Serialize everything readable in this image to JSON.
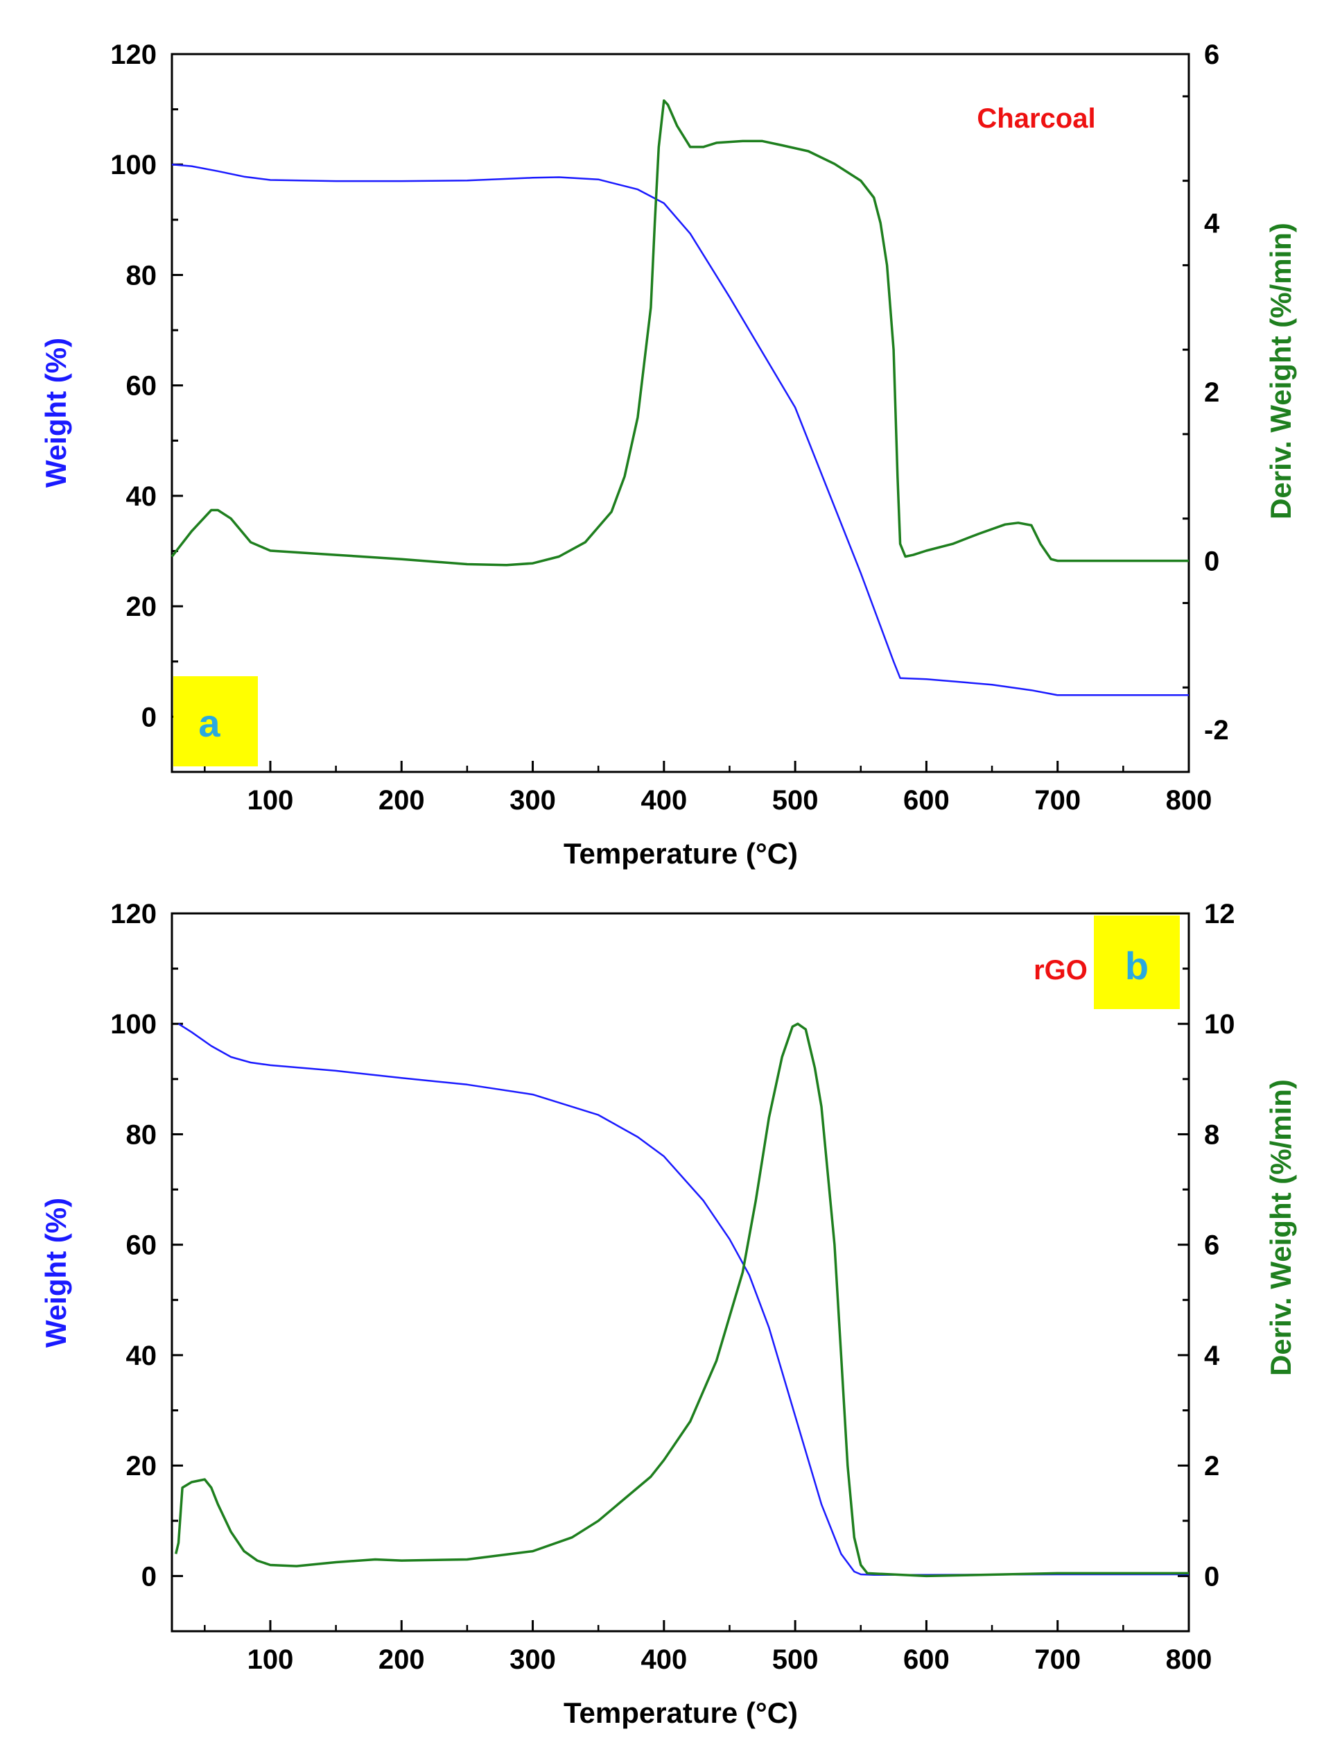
{
  "figure": {
    "panels": [
      {
        "label": "a",
        "sample": "Charcoal"
      },
      {
        "label": "b",
        "sample": "rGO"
      }
    ]
  },
  "colors": {
    "weight": "#1a1aff",
    "deriv": "#1e7f1e",
    "sample_text": "#ee1111",
    "label_text": "#29a9e0",
    "label_bg": "#ffff00",
    "axis": "#000000"
  },
  "chart_data": [
    {
      "type": "line",
      "title": "Charcoal",
      "panel_label": "a",
      "xlabel": "Temperature (°C)",
      "ylabel": "Weight (%)",
      "y2label": "Deriv. Weight (%/min)",
      "xlim": [
        25,
        800
      ],
      "ylim": [
        -10,
        120
      ],
      "y2lim": [
        -2.5,
        6
      ],
      "xticks": [
        100,
        200,
        300,
        400,
        500,
        600,
        700,
        800
      ],
      "yticks": [
        0,
        20,
        40,
        60,
        80,
        100,
        120
      ],
      "y2ticks": [
        -2,
        0,
        2,
        4,
        6
      ],
      "grid": false,
      "series": [
        {
          "name": "Weight (%)",
          "axis": "left",
          "x": [
            25,
            40,
            60,
            80,
            100,
            150,
            200,
            250,
            300,
            320,
            350,
            380,
            400,
            420,
            450,
            500,
            550,
            575,
            580,
            600,
            650,
            680,
            700,
            750,
            800
          ],
          "y": [
            100,
            99.7,
            98.8,
            97.8,
            97.2,
            97,
            97,
            97.1,
            97.6,
            97.7,
            97.3,
            95.5,
            93,
            87.5,
            76,
            56,
            26,
            10,
            7,
            6.8,
            5.8,
            4.8,
            3.9,
            3.9,
            3.9
          ]
        },
        {
          "name": "Deriv. Weight (%/min)",
          "axis": "right",
          "x": [
            25,
            40,
            55,
            60,
            70,
            85,
            100,
            150,
            200,
            250,
            280,
            300,
            320,
            340,
            360,
            370,
            380,
            390,
            393,
            396,
            400,
            403,
            410,
            420,
            430,
            440,
            460,
            475,
            490,
            510,
            530,
            550,
            560,
            565,
            570,
            575,
            578,
            580,
            584,
            590,
            600,
            620,
            640,
            660,
            670,
            680,
            687,
            695,
            700,
            750,
            800
          ],
          "y": [
            0.05,
            0.35,
            0.6,
            0.6,
            0.5,
            0.22,
            0.12,
            0.07,
            0.02,
            -0.04,
            -0.05,
            -0.03,
            0.05,
            0.22,
            0.58,
            1.0,
            1.7,
            3.0,
            4.0,
            4.9,
            5.45,
            5.4,
            5.15,
            4.9,
            4.9,
            4.95,
            4.97,
            4.97,
            4.92,
            4.85,
            4.7,
            4.5,
            4.3,
            4.0,
            3.5,
            2.5,
            1.0,
            0.2,
            0.05,
            0.07,
            0.12,
            0.2,
            0.32,
            0.43,
            0.45,
            0.42,
            0.2,
            0.02,
            0.0,
            0.0,
            0.0
          ]
        }
      ]
    },
    {
      "type": "line",
      "title": "rGO",
      "panel_label": "b",
      "xlabel": "Temperature (°C)",
      "ylabel": "Weight (%)",
      "y2label": "Deriv. Weight (%/min)",
      "xlim": [
        25,
        800
      ],
      "ylim": [
        -10,
        120
      ],
      "y2lim": [
        -1,
        12
      ],
      "xticks": [
        100,
        200,
        300,
        400,
        500,
        600,
        700,
        800
      ],
      "yticks": [
        0,
        20,
        40,
        60,
        80,
        100,
        120
      ],
      "y2ticks": [
        0,
        2,
        4,
        6,
        8,
        10,
        12
      ],
      "grid": false,
      "series": [
        {
          "name": "Weight (%)",
          "axis": "left",
          "x": [
            30,
            40,
            55,
            70,
            85,
            100,
            150,
            200,
            250,
            300,
            350,
            380,
            400,
            430,
            450,
            465,
            480,
            500,
            520,
            535,
            545,
            550,
            560,
            600,
            700,
            800
          ],
          "y": [
            100,
            98.5,
            96,
            94,
            93,
            92.5,
            91.5,
            90.2,
            89,
            87.2,
            83.5,
            79.5,
            76,
            68,
            61,
            54.5,
            45,
            29,
            13,
            4,
            0.8,
            0.3,
            0.2,
            0.2,
            0.3,
            0.3
          ]
        },
        {
          "name": "Deriv. Weight (%/min)",
          "axis": "right",
          "x": [
            28,
            30,
            33,
            40,
            50,
            55,
            60,
            70,
            80,
            90,
            100,
            120,
            150,
            180,
            200,
            250,
            300,
            330,
            350,
            370,
            390,
            400,
            420,
            440,
            460,
            470,
            480,
            490,
            498,
            502,
            508,
            515,
            520,
            530,
            535,
            540,
            545,
            550,
            555,
            600,
            700,
            800
          ],
          "y": [
            0.4,
            0.6,
            1.6,
            1.7,
            1.75,
            1.6,
            1.3,
            0.8,
            0.45,
            0.28,
            0.2,
            0.18,
            0.25,
            0.3,
            0.28,
            0.3,
            0.45,
            0.7,
            1.0,
            1.4,
            1.8,
            2.1,
            2.8,
            3.9,
            5.5,
            6.8,
            8.3,
            9.4,
            9.95,
            10.0,
            9.9,
            9.2,
            8.5,
            6.0,
            4.0,
            2.0,
            0.7,
            0.2,
            0.05,
            0.0,
            0.05,
            0.05
          ]
        }
      ]
    }
  ]
}
